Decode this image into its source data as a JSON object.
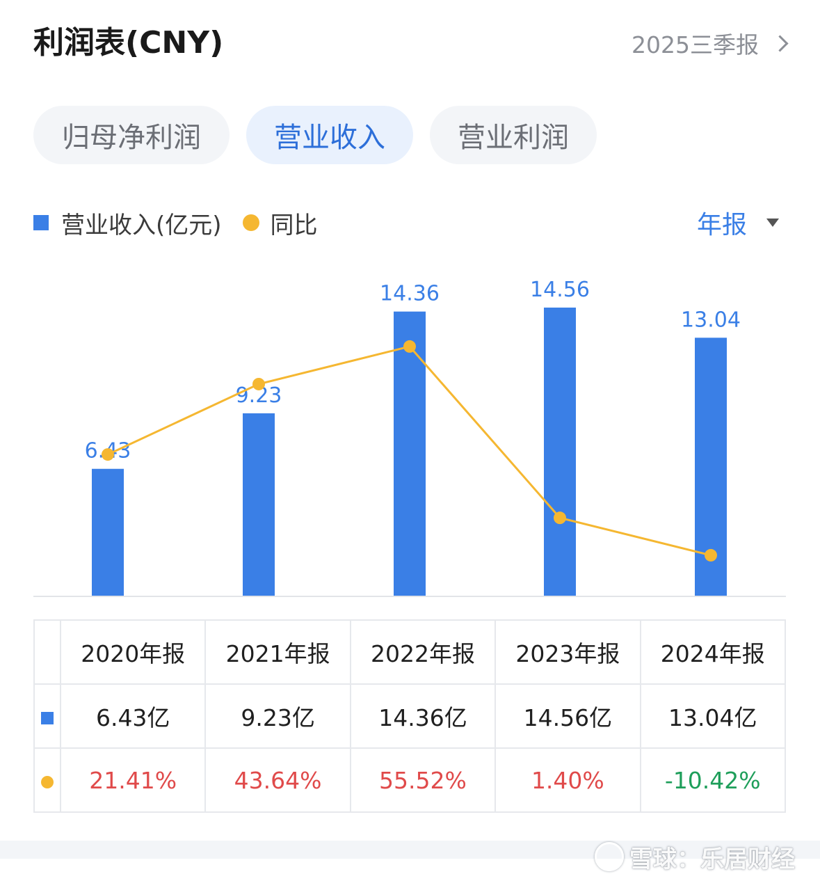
{
  "header": {
    "title": "利润表(CNY)",
    "period_label": "2025三季报"
  },
  "tabs": [
    {
      "label": "归母净利润",
      "active": false
    },
    {
      "label": "营业收入",
      "active": true
    },
    {
      "label": "营业利润",
      "active": false
    }
  ],
  "legend": {
    "bar_label": "营业收入(亿元)",
    "line_label": "同比",
    "period_select": "年报"
  },
  "colors": {
    "bar": "#3a7fe6",
    "line": "#f5b731",
    "positive": "#e04a4a",
    "negative": "#1e9e5a",
    "accent": "#2d6fd9"
  },
  "chart_data": {
    "type": "bar",
    "categories": [
      "2020年报",
      "2021年报",
      "2022年报",
      "2023年报",
      "2024年报"
    ],
    "series": [
      {
        "name": "营业收入(亿元)",
        "type": "bar",
        "values": [
          6.43,
          9.23,
          14.36,
          14.56,
          13.04
        ],
        "labels": [
          "6.43",
          "9.23",
          "14.36",
          "14.56",
          "13.04"
        ]
      },
      {
        "name": "同比",
        "type": "line",
        "values": [
          21.41,
          43.64,
          55.52,
          1.4,
          -10.42
        ]
      }
    ],
    "legend": "top-left",
    "grid": false
  },
  "table": {
    "headers": [
      "2020年报",
      "2021年报",
      "2022年报",
      "2023年报",
      "2024年报"
    ],
    "revenue": [
      "6.43亿",
      "9.23亿",
      "14.36亿",
      "14.56亿",
      "13.04亿"
    ],
    "yoy": [
      "21.41%",
      "43.64%",
      "55.52%",
      "1.40%",
      "-10.42%"
    ]
  },
  "watermark": "雪球：乐居财经"
}
